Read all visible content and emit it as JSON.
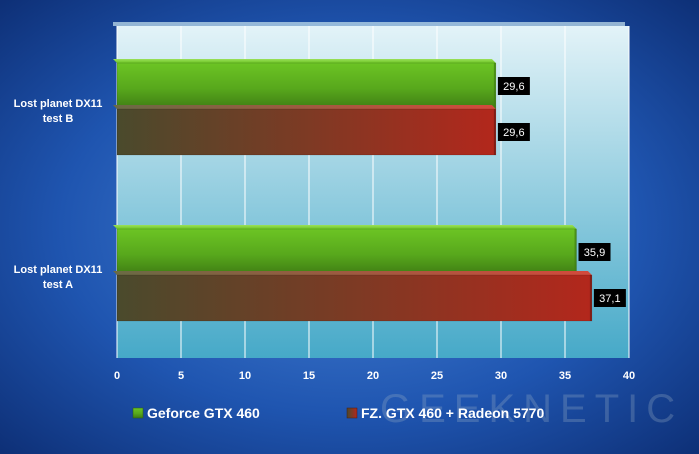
{
  "chart_data": {
    "type": "bar",
    "orientation": "horizontal",
    "categories": [
      "Lost planet DX11 test B",
      "Lost planet DX11 test A"
    ],
    "category_lines": [
      [
        "Lost planet DX11",
        "test B"
      ],
      [
        "Lost planet DX11",
        "test A"
      ]
    ],
    "series": [
      {
        "name": "Geforce GTX 460",
        "values": [
          29.6,
          35.9
        ],
        "labels": [
          "29,6",
          "35,9"
        ],
        "color": "#5aa51e"
      },
      {
        "name": "FZ. GTX 460 + Radeon 5770",
        "values": [
          29.6,
          37.1
        ],
        "labels": [
          "29,6",
          "37,1"
        ],
        "color": "#b0261c"
      }
    ],
    "xlim": [
      0,
      40
    ],
    "xticks": [
      0,
      5,
      10,
      15,
      20,
      25,
      30,
      35,
      40
    ],
    "grid": true,
    "legend_position": "bottom",
    "title": "",
    "xlabel": "",
    "ylabel": ""
  },
  "watermark": {
    "text": "GEEKNETIC"
  },
  "colors": {
    "background_outer": "#0b2a6e",
    "plot_top": "#dff1f7",
    "plot_bottom": "#46a9c8",
    "value_box": "#000000",
    "gtx460_light": "#6cc424",
    "gtx460_dark": "#3f7d14",
    "radeon_left": "#4a4a2c",
    "radeon_right": "#b3271c"
  }
}
